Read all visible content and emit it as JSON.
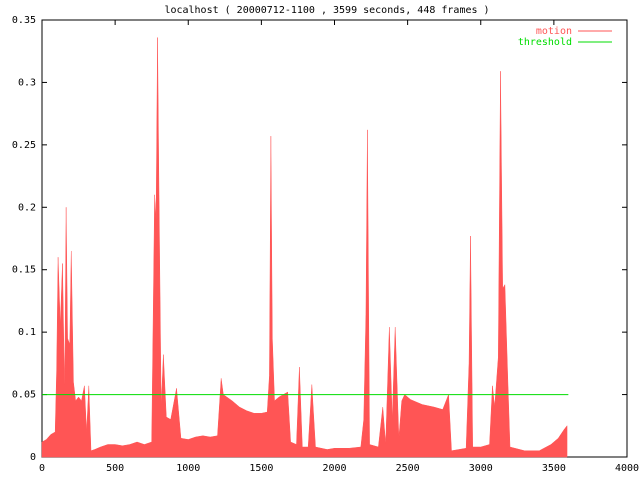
{
  "chart_data": {
    "type": "area",
    "title": "localhost ( 20000712-1100 , 3599 seconds, 448 frames )",
    "xlim": [
      0,
      4000
    ],
    "xticks": [
      0,
      500,
      1000,
      1500,
      2000,
      2500,
      3000,
      3500,
      4000
    ],
    "ylim": [
      0,
      0.35
    ],
    "yticks": [
      0,
      0.05,
      0.1,
      0.15,
      0.2,
      0.25,
      0.3,
      0.35
    ],
    "legend": "top-right",
    "series": [
      {
        "name": "motion",
        "color": "#ff5555",
        "x": [
          0,
          30,
          60,
          90,
          100,
          110,
          125,
          140,
          155,
          165,
          175,
          190,
          200,
          215,
          230,
          250,
          270,
          290,
          305,
          320,
          335,
          360,
          400,
          450,
          500,
          550,
          600,
          650,
          700,
          750,
          770,
          780,
          790,
          800,
          815,
          830,
          850,
          880,
          920,
          950,
          1000,
          1050,
          1100,
          1150,
          1200,
          1225,
          1240,
          1300,
          1350,
          1400,
          1450,
          1500,
          1540,
          1555,
          1565,
          1575,
          1590,
          1620,
          1650,
          1680,
          1700,
          1740,
          1760,
          1780,
          1820,
          1845,
          1870,
          1950,
          2000,
          2100,
          2180,
          2200,
          2215,
          2225,
          2240,
          2300,
          2330,
          2350,
          2375,
          2395,
          2415,
          2440,
          2460,
          2480,
          2520,
          2600,
          2680,
          2740,
          2780,
          2800,
          2850,
          2900,
          2920,
          2930,
          2945,
          3000,
          3060,
          3080,
          3095,
          3120,
          3135,
          3150,
          3165,
          3185,
          3200,
          3300,
          3400,
          3480,
          3530,
          3570,
          3590
        ],
        "values": [
          0.012,
          0.014,
          0.018,
          0.02,
          0.069,
          0.16,
          0.105,
          0.155,
          0.05,
          0.2,
          0.095,
          0.09,
          0.165,
          0.06,
          0.045,
          0.048,
          0.045,
          0.057,
          0.02,
          0.057,
          0.005,
          0.006,
          0.008,
          0.01,
          0.01,
          0.009,
          0.01,
          0.012,
          0.01,
          0.012,
          0.21,
          0.19,
          0.336,
          0.21,
          0.04,
          0.082,
          0.032,
          0.03,
          0.055,
          0.015,
          0.014,
          0.016,
          0.017,
          0.016,
          0.017,
          0.063,
          0.05,
          0.045,
          0.04,
          0.037,
          0.035,
          0.035,
          0.036,
          0.065,
          0.257,
          0.095,
          0.045,
          0.048,
          0.05,
          0.052,
          0.012,
          0.01,
          0.072,
          0.008,
          0.008,
          0.058,
          0.008,
          0.006,
          0.007,
          0.007,
          0.008,
          0.03,
          0.114,
          0.262,
          0.01,
          0.008,
          0.04,
          0.01,
          0.104,
          0.03,
          0.104,
          0.015,
          0.045,
          0.05,
          0.046,
          0.042,
          0.04,
          0.038,
          0.05,
          0.005,
          0.006,
          0.007,
          0.075,
          0.177,
          0.008,
          0.008,
          0.01,
          0.057,
          0.04,
          0.08,
          0.309,
          0.135,
          0.138,
          0.062,
          0.008,
          0.005,
          0.005,
          0.01,
          0.015,
          0.022,
          0.025
        ]
      },
      {
        "name": "threshold",
        "color": "#00dd00",
        "x": [
          0,
          3599
        ],
        "values": [
          0.05,
          0.05
        ]
      }
    ]
  }
}
